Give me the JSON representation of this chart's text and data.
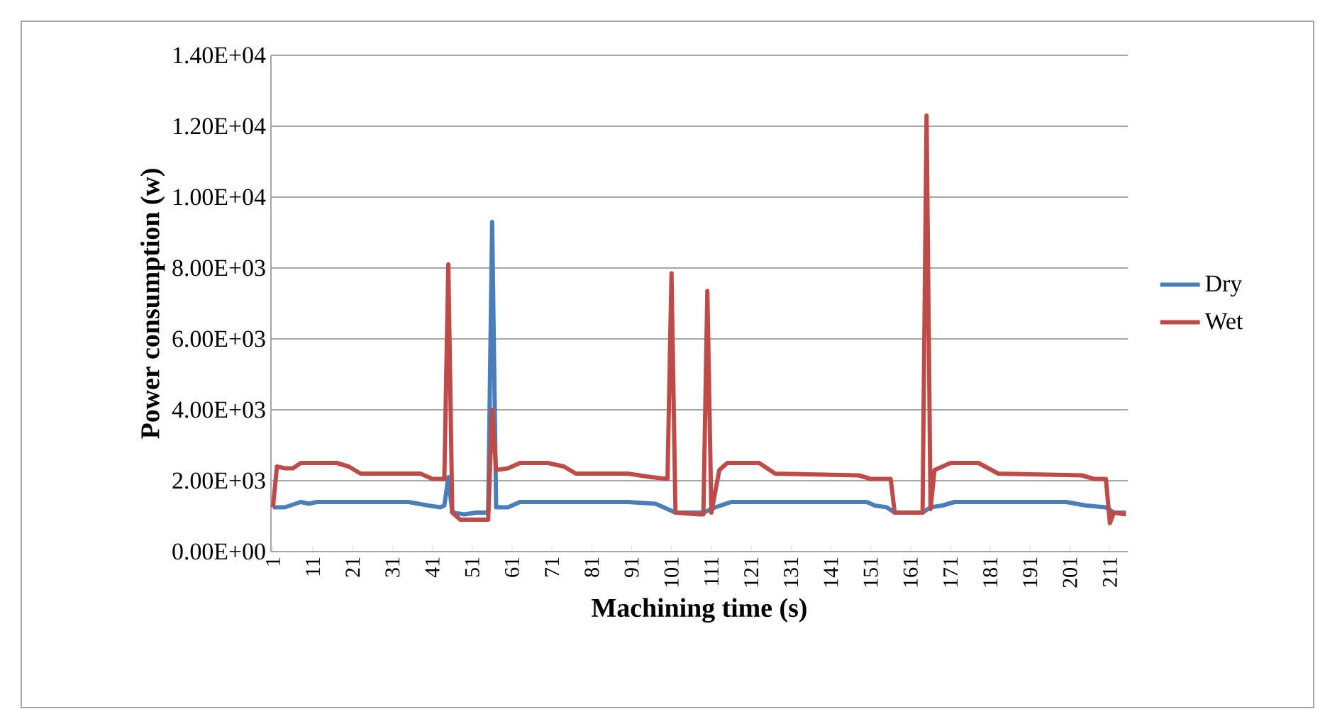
{
  "chart_data": {
    "type": "line",
    "xlabel": "Machining time (s)",
    "ylabel": "Power consumption (w)",
    "xlim": [
      0.5,
      215.5
    ],
    "xticks": [
      1,
      11,
      21,
      31,
      41,
      51,
      61,
      71,
      81,
      91,
      101,
      111,
      121,
      131,
      141,
      151,
      161,
      171,
      181,
      191,
      201,
      211
    ],
    "ylim": [
      0,
      14000
    ],
    "yticks": [
      {
        "value": 0,
        "label": "0.00E+00"
      },
      {
        "value": 2000,
        "label": "2.00E+03"
      },
      {
        "value": 4000,
        "label": "4.00E+03"
      },
      {
        "value": 6000,
        "label": "6.00E+03"
      },
      {
        "value": 8000,
        "label": "8.00E+03"
      },
      {
        "value": 10000,
        "label": "1.00E+04"
      },
      {
        "value": 12000,
        "label": "1.20E+04"
      },
      {
        "value": 14000,
        "label": "1.40E+04"
      }
    ],
    "grid": "y",
    "legend": "right",
    "marker": "none",
    "line_style": "solid",
    "series": [
      {
        "name": "Dry",
        "color": "#4a7ebb",
        "x": [
          1,
          4,
          8,
          10,
          12,
          25,
          35,
          40,
          43,
          44,
          45,
          46,
          49,
          52,
          55,
          56,
          57,
          60,
          63,
          80,
          90,
          97,
          100,
          102,
          105,
          109,
          112,
          116,
          130,
          145,
          150,
          152,
          155,
          157,
          164,
          166,
          169,
          172,
          190,
          200,
          205,
          210,
          212,
          215
        ],
        "values": [
          1250,
          1250,
          1400,
          1350,
          1400,
          1400,
          1400,
          1300,
          1250,
          1300,
          2100,
          1100,
          1050,
          1100,
          1100,
          9300,
          1250,
          1250,
          1400,
          1400,
          1400,
          1350,
          1200,
          1100,
          1100,
          1100,
          1250,
          1400,
          1400,
          1400,
          1400,
          1300,
          1250,
          1100,
          1100,
          1250,
          1300,
          1400,
          1400,
          1400,
          1300,
          1250,
          1100,
          1100
        ]
      },
      {
        "name": "Wet",
        "color": "#be4b48",
        "x": [
          1,
          2,
          4,
          6,
          8,
          17,
          20,
          23,
          30,
          38,
          41,
          44,
          45,
          46,
          48,
          54,
          55,
          56,
          57,
          60,
          63,
          70,
          74,
          77,
          90,
          96,
          100,
          101,
          102,
          108,
          109,
          110,
          111,
          113,
          115,
          123,
          127,
          148,
          151,
          156,
          157,
          164,
          165,
          166,
          167,
          171,
          178,
          183,
          204,
          207,
          210,
          211,
          212,
          215
        ],
        "values": [
          1250,
          2400,
          2350,
          2350,
          2500,
          2500,
          2400,
          2200,
          2200,
          2200,
          2050,
          2050,
          8100,
          1100,
          900,
          900,
          900,
          4000,
          2300,
          2350,
          2500,
          2500,
          2400,
          2200,
          2200,
          2100,
          2050,
          7850,
          1100,
          1050,
          1050,
          7350,
          1100,
          2300,
          2500,
          2500,
          2200,
          2150,
          2050,
          2050,
          1100,
          1100,
          12300,
          1200,
          2300,
          2500,
          2500,
          2200,
          2150,
          2050,
          2050,
          800,
          1100,
          1050
        ]
      }
    ]
  }
}
